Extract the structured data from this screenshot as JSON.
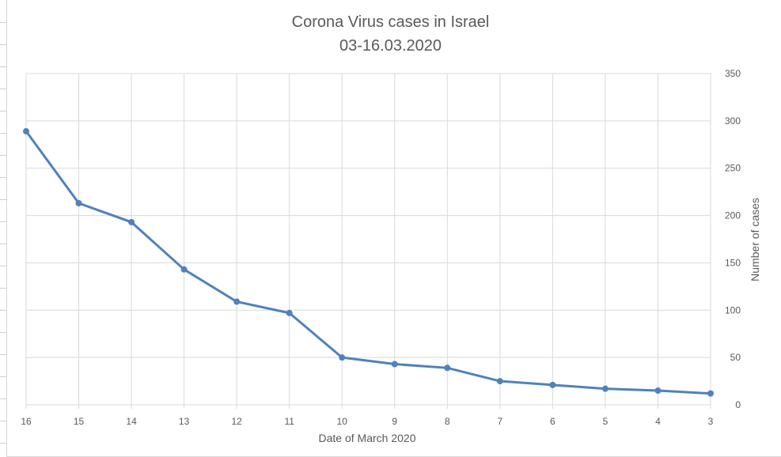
{
  "chart_data": {
    "type": "line",
    "title": "Corona Virus cases in Israel",
    "subtitle": "03-16.03.2020",
    "xlabel": "Date of March 2020",
    "ylabel": "Number of cases",
    "categories": [
      "16",
      "15",
      "14",
      "13",
      "12",
      "11",
      "10",
      "9",
      "8",
      "7",
      "6",
      "5",
      "4",
      "3"
    ],
    "series": [
      {
        "name": "",
        "values": [
          289,
          213,
          193,
          143,
          109,
          97,
          50,
          43,
          39,
          25,
          21,
          17,
          15,
          12
        ]
      }
    ],
    "yticks": [
      "0",
      "50",
      "100",
      "150",
      "200",
      "250",
      "300",
      "350"
    ],
    "ylim": [
      0,
      350
    ],
    "y_axis_side": "right",
    "grid": true,
    "legend": "none",
    "colors": {
      "line": "#4f81bd",
      "grid": "#d9d9d9",
      "text": "#595959"
    }
  }
}
